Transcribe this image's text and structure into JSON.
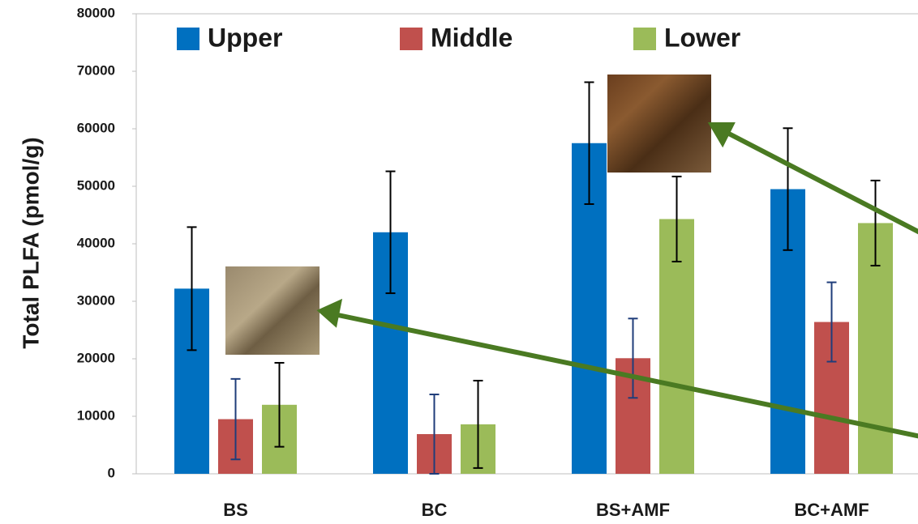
{
  "chart_data": {
    "type": "bar",
    "y_label": "Total PLFA (pmol/g)",
    "categories": [
      "BS",
      "BC",
      "BS+AMF",
      "BC+AMF"
    ],
    "series": [
      {
        "name": "Upper",
        "color": "#0070c0",
        "error_color": "#000000",
        "values": [
          32200,
          42000,
          57500,
          49500
        ],
        "errors": [
          10700,
          10600,
          10600,
          10600
        ]
      },
      {
        "name": "Middle",
        "color": "#c0504d",
        "error_color": "#1f3d7a",
        "values": [
          9500,
          6900,
          20100,
          26400
        ],
        "errors": [
          7000,
          6900,
          6900,
          6900
        ]
      },
      {
        "name": "Lower",
        "color": "#9bbb59",
        "error_color": "#000000",
        "values": [
          12000,
          8600,
          44300,
          43600
        ],
        "errors": [
          7300,
          7600,
          7400,
          7400
        ]
      }
    ],
    "ylim": [
      0,
      80000
    ],
    "yticks": [
      0,
      10000,
      20000,
      30000,
      40000,
      50000,
      60000,
      70000,
      80000
    ],
    "grid": false
  }
}
